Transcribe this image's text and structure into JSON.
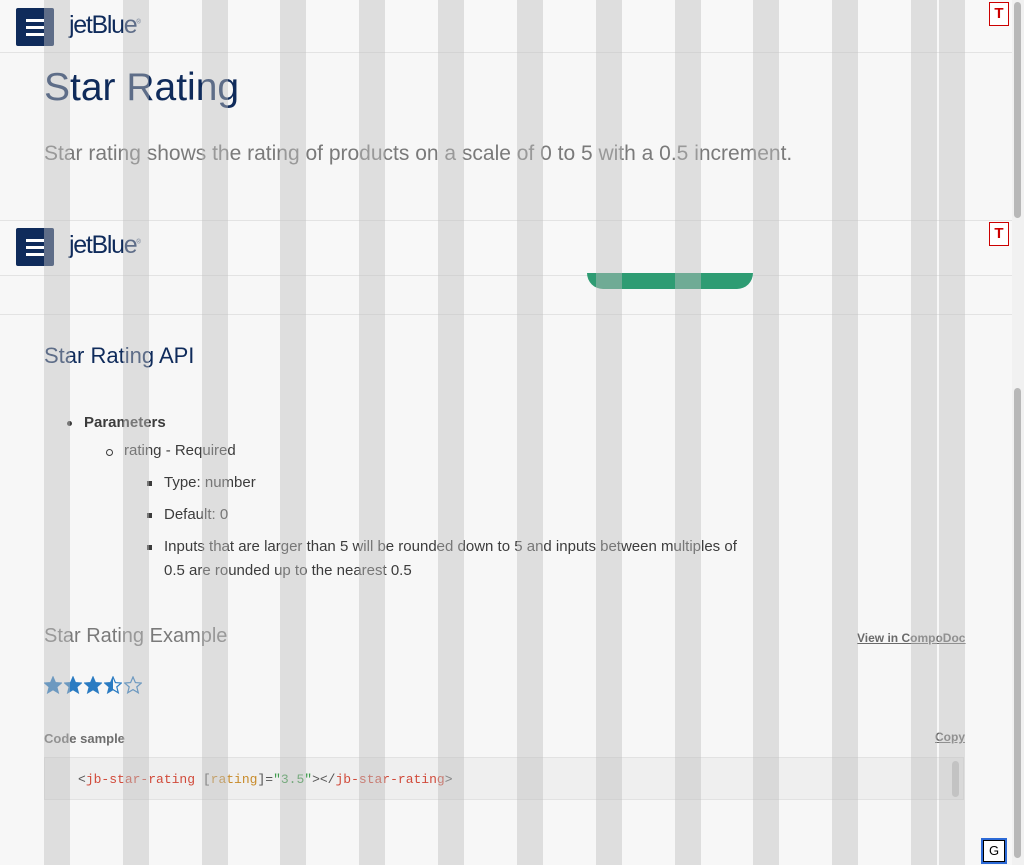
{
  "brand": {
    "logo_text": "jetBlue",
    "logo_mark": "®",
    "navy": "#0f2b5b",
    "green": "#2e9c73"
  },
  "header": {
    "menu_icon": "hamburger-icon",
    "t_button": "T"
  },
  "page": {
    "title": "Star Rating",
    "description": "Star rating shows the rating of products on a scale of 0 to 5 with a 0.5 increment."
  },
  "api": {
    "title": "Star Rating API",
    "parameters_label": "Parameters",
    "param_name": "rating - Required",
    "details": [
      "Type: number",
      "Default: 0",
      "Inputs that are larger than 5 will be rounded down to 5 and inputs between multiples of",
      "0.5 are rounded up to the nearest 0.5"
    ]
  },
  "example": {
    "title": "Star Rating Example",
    "compodoc_link": "View in CompoDoc",
    "rating": 3.5,
    "max_rating": 5,
    "star_color": "#2a7bc2",
    "code_label": "Code sample",
    "copy_label": "Copy",
    "code": {
      "open_lt": "<",
      "tag": "jb-star-rating",
      "attr_open": " [",
      "attr": "rating",
      "attr_close": "]=",
      "value": "\"3.5\"",
      "close_mid": "></",
      "close_tag": "jb-star-rating",
      "close_gt": ">"
    }
  },
  "overlay": {
    "g_button": "G"
  }
}
